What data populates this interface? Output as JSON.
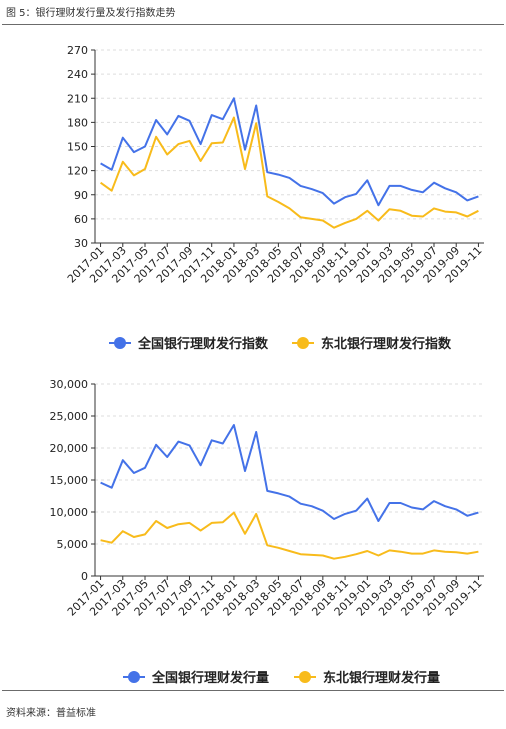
{
  "figure_title": "图 5：银行理财发行量及发行指数走势",
  "source": "资料来源：普益标准",
  "colors": {
    "blue": "#4472e8",
    "yellow": "#f8bb1b",
    "grid": "#dddddd",
    "axis": "#333333"
  },
  "chart_data": [
    {
      "type": "line",
      "x": [
        "2017-01",
        "2017-02",
        "2017-03",
        "2017-04",
        "2017-05",
        "2017-06",
        "2017-07",
        "2017-08",
        "2017-09",
        "2017-10",
        "2017-11",
        "2017-12",
        "2018-01",
        "2018-02",
        "2018-03",
        "2018-04",
        "2018-05",
        "2018-06",
        "2018-07",
        "2018-08",
        "2018-09",
        "2018-10",
        "2018-11",
        "2018-12",
        "2019-01",
        "2019-02",
        "2019-03",
        "2019-04",
        "2019-05",
        "2019-06",
        "2019-07",
        "2019-08",
        "2019-09",
        "2019-10",
        "2019-11"
      ],
      "xticks": [
        "2017-01",
        "2017-03",
        "2017-05",
        "2017-07",
        "2017-09",
        "2017-11",
        "2018-01",
        "2018-03",
        "2018-05",
        "2018-07",
        "2018-09",
        "2018-11",
        "2019-01",
        "2019-03",
        "2019-05",
        "2019-07",
        "2019-09",
        "2019-11"
      ],
      "series": [
        {
          "name": "全国银行理财发行指数",
          "color": "#4472e8",
          "values": [
            129,
            121,
            161,
            143,
            150,
            183,
            165,
            188,
            182,
            153,
            189,
            184,
            210,
            146,
            201,
            118,
            115,
            111,
            101,
            97,
            92,
            79,
            87,
            91,
            108,
            77,
            101,
            101,
            96,
            93,
            105,
            98,
            93,
            83,
            88
          ]
        },
        {
          "name": "东北银行理财发行指数",
          "color": "#f8bb1b",
          "values": [
            105,
            95,
            131,
            114,
            122,
            162,
            140,
            153,
            157,
            132,
            154,
            155,
            186,
            122,
            179,
            88,
            81,
            73,
            62,
            60,
            58,
            49,
            55,
            60,
            70,
            58,
            72,
            70,
            64,
            63,
            73,
            69,
            68,
            63,
            70
          ]
        }
      ],
      "ylim": [
        30,
        270
      ],
      "yticks": [
        30,
        60,
        90,
        120,
        150,
        180,
        210,
        240,
        270
      ],
      "grid": true,
      "legend": "bottom"
    },
    {
      "type": "line",
      "x": [
        "2017-01",
        "2017-02",
        "2017-03",
        "2017-04",
        "2017-05",
        "2017-06",
        "2017-07",
        "2017-08",
        "2017-09",
        "2017-10",
        "2017-11",
        "2017-12",
        "2018-01",
        "2018-02",
        "2018-03",
        "2018-04",
        "2018-05",
        "2018-06",
        "2018-07",
        "2018-08",
        "2018-09",
        "2018-10",
        "2018-11",
        "2018-12",
        "2019-01",
        "2019-02",
        "2019-03",
        "2019-04",
        "2019-05",
        "2019-06",
        "2019-07",
        "2019-08",
        "2019-09",
        "2019-10",
        "2019-11"
      ],
      "xticks": [
        "2017-01",
        "2017-03",
        "2017-05",
        "2017-07",
        "2017-09",
        "2017-11",
        "2018-01",
        "2018-03",
        "2018-05",
        "2018-07",
        "2018-09",
        "2018-11",
        "2019-01",
        "2019-03",
        "2019-05",
        "2019-07",
        "2019-09",
        "2019-11"
      ],
      "series": [
        {
          "name": "全国银行理财发行量",
          "color": "#4472e8",
          "values": [
            14600,
            13800,
            18100,
            16100,
            16900,
            20500,
            18600,
            21000,
            20400,
            17300,
            21200,
            20700,
            23600,
            16400,
            22500,
            13300,
            12900,
            12400,
            11300,
            10900,
            10200,
            8900,
            9700,
            10200,
            12100,
            8600,
            11400,
            11400,
            10700,
            10400,
            11700,
            10900,
            10400,
            9400,
            9900
          ]
        },
        {
          "name": "东北银行理财发行量",
          "color": "#f8bb1b",
          "values": [
            5600,
            5200,
            7000,
            6100,
            6500,
            8600,
            7500,
            8100,
            8300,
            7100,
            8300,
            8400,
            9900,
            6600,
            9700,
            4800,
            4400,
            3900,
            3400,
            3300,
            3200,
            2700,
            3000,
            3400,
            3900,
            3200,
            4000,
            3800,
            3500,
            3500,
            4000,
            3800,
            3700,
            3500,
            3800
          ]
        }
      ],
      "ylim": [
        0,
        30000
      ],
      "yticks": [
        "0",
        "5,000",
        "10,000",
        "15,000",
        "20,000",
        "25,000",
        "30,000"
      ],
      "grid": true,
      "legend": "bottom"
    }
  ]
}
